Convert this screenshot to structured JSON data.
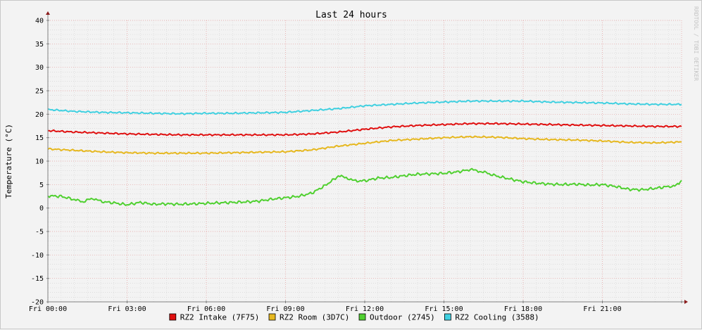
{
  "chart_data": {
    "type": "line",
    "title": "Last 24 hours",
    "ylabel": "Temperature (°C)",
    "watermark": "RRDTOOL / TOBI OETIKER",
    "ylim": [
      -20,
      40
    ],
    "xlim_hours": [
      0,
      24
    ],
    "yticks": [
      "40",
      "35",
      "30",
      "25",
      "20",
      "15",
      "10",
      "5",
      "0",
      "-5",
      "-10",
      "-15",
      "-20"
    ],
    "xticks": [
      "Fri 00:00",
      "Fri 03:00",
      "Fri 06:00",
      "Fri 09:00",
      "Fri 12:00",
      "Fri 15:00",
      "Fri 18:00",
      "Fri 21:00"
    ],
    "grid": true,
    "legend_position": "bottom",
    "series": [
      {
        "name": "RZ2 Intake (7F75)",
        "color": "#e01010",
        "x": [
          0,
          1,
          2,
          3,
          4,
          5,
          6,
          7,
          8,
          9,
          10,
          11,
          12,
          13,
          14,
          15,
          16,
          17,
          18,
          19,
          20,
          21,
          22,
          23,
          24
        ],
        "y": [
          16.5,
          16.2,
          16.0,
          15.8,
          15.7,
          15.6,
          15.6,
          15.6,
          15.6,
          15.6,
          15.8,
          16.2,
          16.8,
          17.3,
          17.6,
          17.8,
          18.0,
          18.0,
          17.9,
          17.8,
          17.7,
          17.6,
          17.5,
          17.4,
          17.4
        ]
      },
      {
        "name": "RZ2 Room (3D7C)",
        "color": "#e6b820",
        "x": [
          0,
          1,
          2,
          3,
          4,
          5,
          6,
          7,
          8,
          9,
          10,
          11,
          12,
          13,
          14,
          15,
          16,
          17,
          18,
          19,
          20,
          21,
          22,
          23,
          24
        ],
        "y": [
          12.6,
          12.3,
          12.0,
          11.8,
          11.7,
          11.7,
          11.7,
          11.8,
          11.9,
          12.0,
          12.4,
          13.2,
          13.8,
          14.4,
          14.7,
          15.0,
          15.2,
          15.1,
          14.8,
          14.6,
          14.5,
          14.3,
          14.0,
          13.9,
          14.1
        ]
      },
      {
        "name": "Outdoor (2745)",
        "color": "#50d030",
        "x": [
          0,
          0.5,
          1,
          1.3,
          1.7,
          2,
          2.5,
          3,
          3.5,
          4,
          4.5,
          5,
          5.5,
          6,
          6.5,
          7,
          7.5,
          8,
          8.5,
          9,
          9.5,
          10,
          10.5,
          11,
          11.3,
          11.6,
          12,
          12.5,
          13,
          13.5,
          14,
          14.5,
          15,
          15.5,
          16,
          16.3,
          16.6,
          17,
          17.5,
          18,
          18.5,
          19,
          19.5,
          20,
          20.5,
          21,
          21.5,
          22,
          22.5,
          23,
          23.5,
          23.8,
          24
        ],
        "y": [
          2.6,
          2.5,
          1.8,
          1.3,
          2.1,
          1.4,
          1.1,
          0.7,
          1.2,
          0.8,
          0.9,
          0.8,
          0.9,
          1.0,
          1.1,
          1.2,
          1.3,
          1.5,
          1.9,
          2.2,
          2.5,
          3.2,
          4.8,
          6.8,
          6.5,
          5.8,
          5.8,
          6.4,
          6.5,
          6.9,
          7.2,
          7.3,
          7.4,
          7.7,
          8.2,
          7.9,
          7.5,
          6.8,
          6.2,
          5.6,
          5.3,
          5.1,
          5.0,
          5.1,
          4.9,
          5.0,
          4.6,
          4.0,
          3.9,
          4.2,
          4.6,
          4.8,
          5.9
        ]
      },
      {
        "name": "RZ2 Cooling (3588)",
        "color": "#40d0e0",
        "x": [
          0,
          1,
          2,
          3,
          4,
          5,
          6,
          7,
          8,
          9,
          10,
          11,
          12,
          13,
          14,
          15,
          16,
          17,
          18,
          19,
          20,
          21,
          22,
          23,
          24
        ],
        "y": [
          21.0,
          20.6,
          20.4,
          20.3,
          20.2,
          20.1,
          20.2,
          20.2,
          20.3,
          20.4,
          20.8,
          21.2,
          21.8,
          22.1,
          22.4,
          22.6,
          22.8,
          22.8,
          22.8,
          22.6,
          22.5,
          22.4,
          22.2,
          22.1,
          22.1
        ]
      }
    ]
  }
}
